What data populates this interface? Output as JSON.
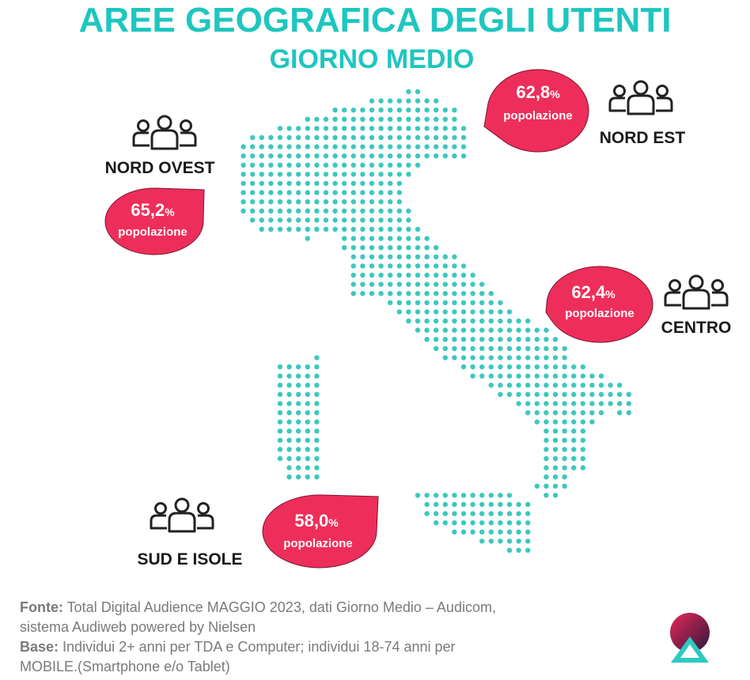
{
  "header": {
    "title": "AREE GEOGRAFICA DEGLI UTENTI",
    "subtitle": "GIORNO MEDIO"
  },
  "regions": [
    {
      "name": "NORD OVEST",
      "value": "65,2",
      "unit": "%",
      "label": "popolazione"
    },
    {
      "name": "NORD EST",
      "value": "62,8",
      "unit": "%",
      "label": "popolazione"
    },
    {
      "name": "CENTRO",
      "value": "62,4",
      "unit": "%",
      "label": "popolazione"
    },
    {
      "name": "SUD E ISOLE",
      "value": "58,0",
      "unit": "%",
      "label": "popolazione"
    }
  ],
  "footer": {
    "source_label": "Fonte:",
    "source_text": [
      "Total Digital Audience MAGGIO 2023, dati Giorno Medio – Audicom,",
      "sistema Audiweb powered by Nielsen"
    ],
    "base_label": "Base:",
    "base_text": [
      "Individui 2+ anni per TDA e Computer; individui 18-74 anni per",
      "MOBILE.(Smartphone e/o Tablet)"
    ]
  }
}
